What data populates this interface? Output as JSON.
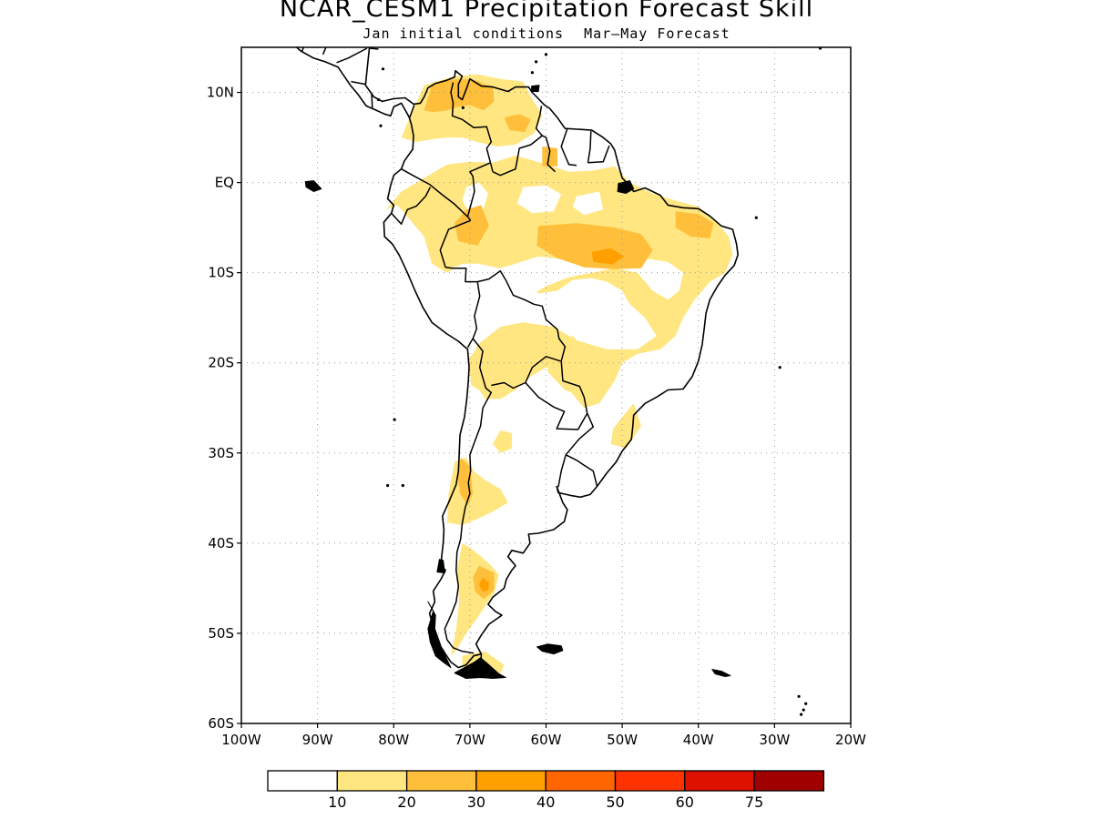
{
  "title": "NCAR_CESM1 Precipitation Forecast Skill",
  "subtitle_left": "Jan initial conditions",
  "subtitle_right": "Mar–May Forecast",
  "map": {
    "region": "South America",
    "lon_range": [
      -100,
      -20
    ],
    "lat_range": [
      -60,
      15
    ],
    "grid": "dotted",
    "lat_ticks": [
      {
        "value": 10,
        "label": "10N"
      },
      {
        "value": 0,
        "label": "EQ"
      },
      {
        "value": -10,
        "label": "10S"
      },
      {
        "value": -20,
        "label": "20S"
      },
      {
        "value": -30,
        "label": "30S"
      },
      {
        "value": -40,
        "label": "40S"
      },
      {
        "value": -50,
        "label": "50S"
      },
      {
        "value": -60,
        "label": "60S"
      }
    ],
    "lon_ticks": [
      {
        "value": -100,
        "label": "100W"
      },
      {
        "value": -90,
        "label": "90W"
      },
      {
        "value": -80,
        "label": "80W"
      },
      {
        "value": -70,
        "label": "70W"
      },
      {
        "value": -60,
        "label": "60W"
      },
      {
        "value": -50,
        "label": "50W"
      },
      {
        "value": -40,
        "label": "40W"
      },
      {
        "value": -30,
        "label": "30W"
      },
      {
        "value": -20,
        "label": "20W"
      }
    ],
    "skill_regions": [
      {
        "level": 1,
        "area": "northern Colombia / Venezuela"
      },
      {
        "level": 2,
        "area": "northern Colombia / Venezuela core"
      },
      {
        "level": 1,
        "area": "northwest Amazon / Ecuador-Peru"
      },
      {
        "level": 1,
        "area": "central-northern Brazil"
      },
      {
        "level": 2,
        "area": "central Brazil core"
      },
      {
        "level": 3,
        "area": "central Brazil maximum"
      },
      {
        "level": 1,
        "area": "northeast Brazil coast"
      },
      {
        "level": 1,
        "area": "Bolivia / Paraguay"
      },
      {
        "level": 1,
        "area": "central Chile / Andes"
      },
      {
        "level": 1,
        "area": "Patagonia"
      },
      {
        "level": 3,
        "area": "Patagonia maximum"
      }
    ]
  },
  "colorbar": {
    "colors": [
      "#ffffff",
      "#ffe680",
      "#ffbf3a",
      "#ff9f00",
      "#ff6600",
      "#ff3300",
      "#dd1100",
      "#a00000"
    ],
    "labels": [
      "10",
      "20",
      "30",
      "40",
      "50",
      "60",
      "75"
    ]
  }
}
